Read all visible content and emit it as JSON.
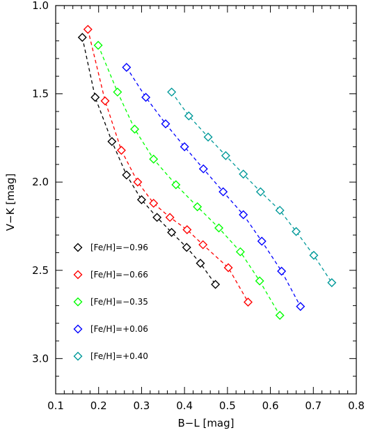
{
  "chart_data": {
    "type": "scatter",
    "title": "",
    "xlabel": "B−L [mag]",
    "ylabel": "V−K [mag]",
    "xlim": [
      0.1,
      0.8
    ],
    "ylim": [
      3.2,
      1.0
    ],
    "y_inverted": true,
    "grid": false,
    "legend_position": "bottom-left",
    "marker": "diamond-open",
    "line_style": "dashed",
    "x_ticks": [
      "0.1",
      "0.2",
      "0.3",
      "0.4",
      "0.5",
      "0.6",
      "0.7",
      "0.8"
    ],
    "y_ticks": [
      "1.0",
      "1.5",
      "2.0",
      "2.5",
      "3.0"
    ],
    "series": [
      {
        "name": "[Fe/H]=−0.96",
        "color": "#000000",
        "points": [
          [
            0.162,
            1.18
          ],
          [
            0.192,
            1.52
          ],
          [
            0.231,
            1.77
          ],
          [
            0.265,
            1.96
          ],
          [
            0.3,
            2.1
          ],
          [
            0.336,
            2.2
          ],
          [
            0.37,
            2.285
          ],
          [
            0.405,
            2.37
          ],
          [
            0.437,
            2.46
          ],
          [
            0.472,
            2.58
          ]
        ]
      },
      {
        "name": "[Fe/H]=−0.66",
        "color": "#ff0000",
        "points": [
          [
            0.175,
            1.135
          ],
          [
            0.215,
            1.54
          ],
          [
            0.253,
            1.82
          ],
          [
            0.291,
            2.0
          ],
          [
            0.328,
            2.12
          ],
          [
            0.366,
            2.2
          ],
          [
            0.406,
            2.27
          ],
          [
            0.443,
            2.355
          ],
          [
            0.502,
            2.485
          ],
          [
            0.548,
            2.68
          ]
        ]
      },
      {
        "name": "[Fe/H]=−0.35",
        "color": "#00ff00",
        "points": [
          [
            0.199,
            1.225
          ],
          [
            0.244,
            1.49
          ],
          [
            0.284,
            1.7
          ],
          [
            0.328,
            1.87
          ],
          [
            0.38,
            2.015
          ],
          [
            0.43,
            2.14
          ],
          [
            0.48,
            2.26
          ],
          [
            0.53,
            2.395
          ],
          [
            0.575,
            2.56
          ],
          [
            0.622,
            2.755
          ]
        ]
      },
      {
        "name": "[Fe/H]=+0.06",
        "color": "#0000ff",
        "points": [
          [
            0.265,
            1.35
          ],
          [
            0.31,
            1.52
          ],
          [
            0.356,
            1.67
          ],
          [
            0.4,
            1.8
          ],
          [
            0.444,
            1.925
          ],
          [
            0.49,
            2.055
          ],
          [
            0.537,
            2.185
          ],
          [
            0.58,
            2.335
          ],
          [
            0.626,
            2.505
          ],
          [
            0.67,
            2.705
          ]
        ]
      },
      {
        "name": "[Fe/H]=+0.40",
        "color": "#009999",
        "points": [
          [
            0.37,
            1.49
          ],
          [
            0.41,
            1.625
          ],
          [
            0.455,
            1.745
          ],
          [
            0.496,
            1.85
          ],
          [
            0.537,
            1.955
          ],
          [
            0.577,
            2.055
          ],
          [
            0.622,
            2.16
          ],
          [
            0.66,
            2.28
          ],
          [
            0.701,
            2.415
          ],
          [
            0.743,
            2.57
          ]
        ]
      }
    ]
  }
}
